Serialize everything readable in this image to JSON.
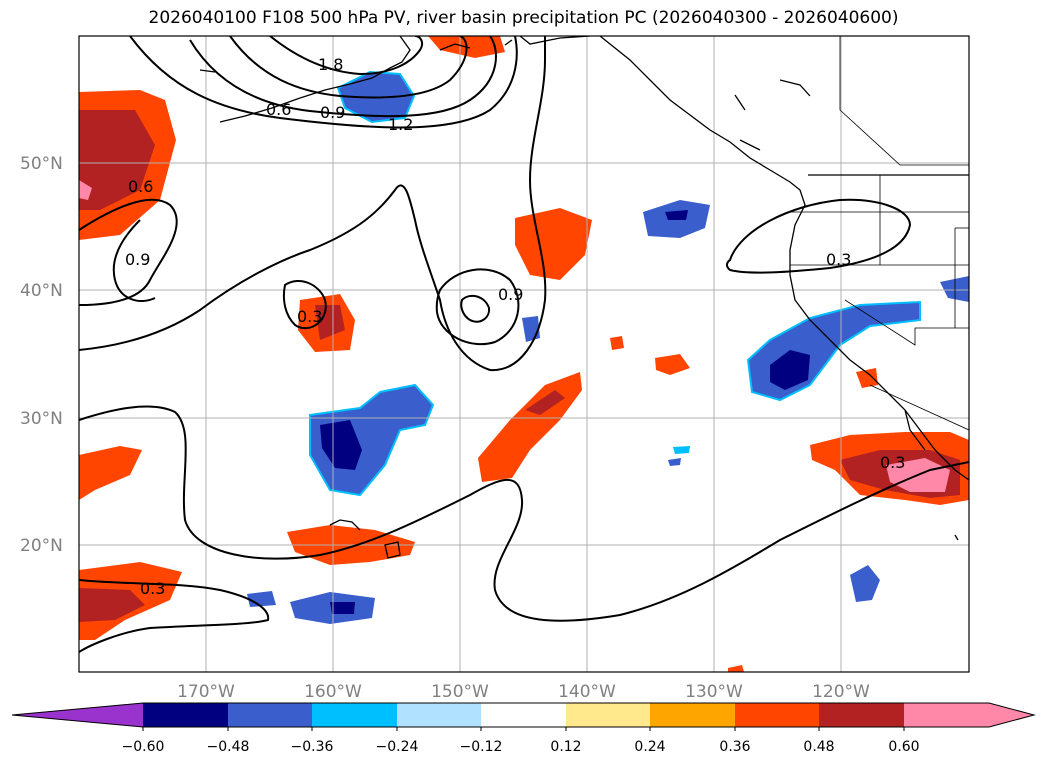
{
  "title": "2026040100 F108 500 hPa PV, river basin precipitation PC (2026040300 - 2026040600)",
  "map": {
    "lat_labels": [
      "50°N",
      "40°N",
      "30°N",
      "20°N"
    ],
    "lon_labels": [
      "170°W",
      "160°W",
      "150°W",
      "140°W",
      "130°W",
      "120°W"
    ],
    "contour_labels": [
      "1.8",
      "0.6",
      "0.9",
      "1.2",
      "0.6",
      "0.9",
      "0.3",
      "0.9",
      "0.3",
      "0.3",
      "0.3"
    ],
    "colors": {
      "purple": "#9a32cd",
      "navy": "#000080",
      "royal": "#3a5fcd",
      "sky": "#00bfff",
      "lightblue": "#b0e2ff",
      "yellow": "#ffe98c",
      "orange": "#ffa500",
      "orangered": "#ff4500",
      "firebrick": "#b22222",
      "pink": "#ff87a8"
    }
  },
  "colorbar": {
    "ticks": [
      "−0.60",
      "−0.48",
      "−0.36",
      "−0.24",
      "−0.12",
      "0.12",
      "0.24",
      "0.36",
      "0.48",
      "0.60"
    ]
  }
}
